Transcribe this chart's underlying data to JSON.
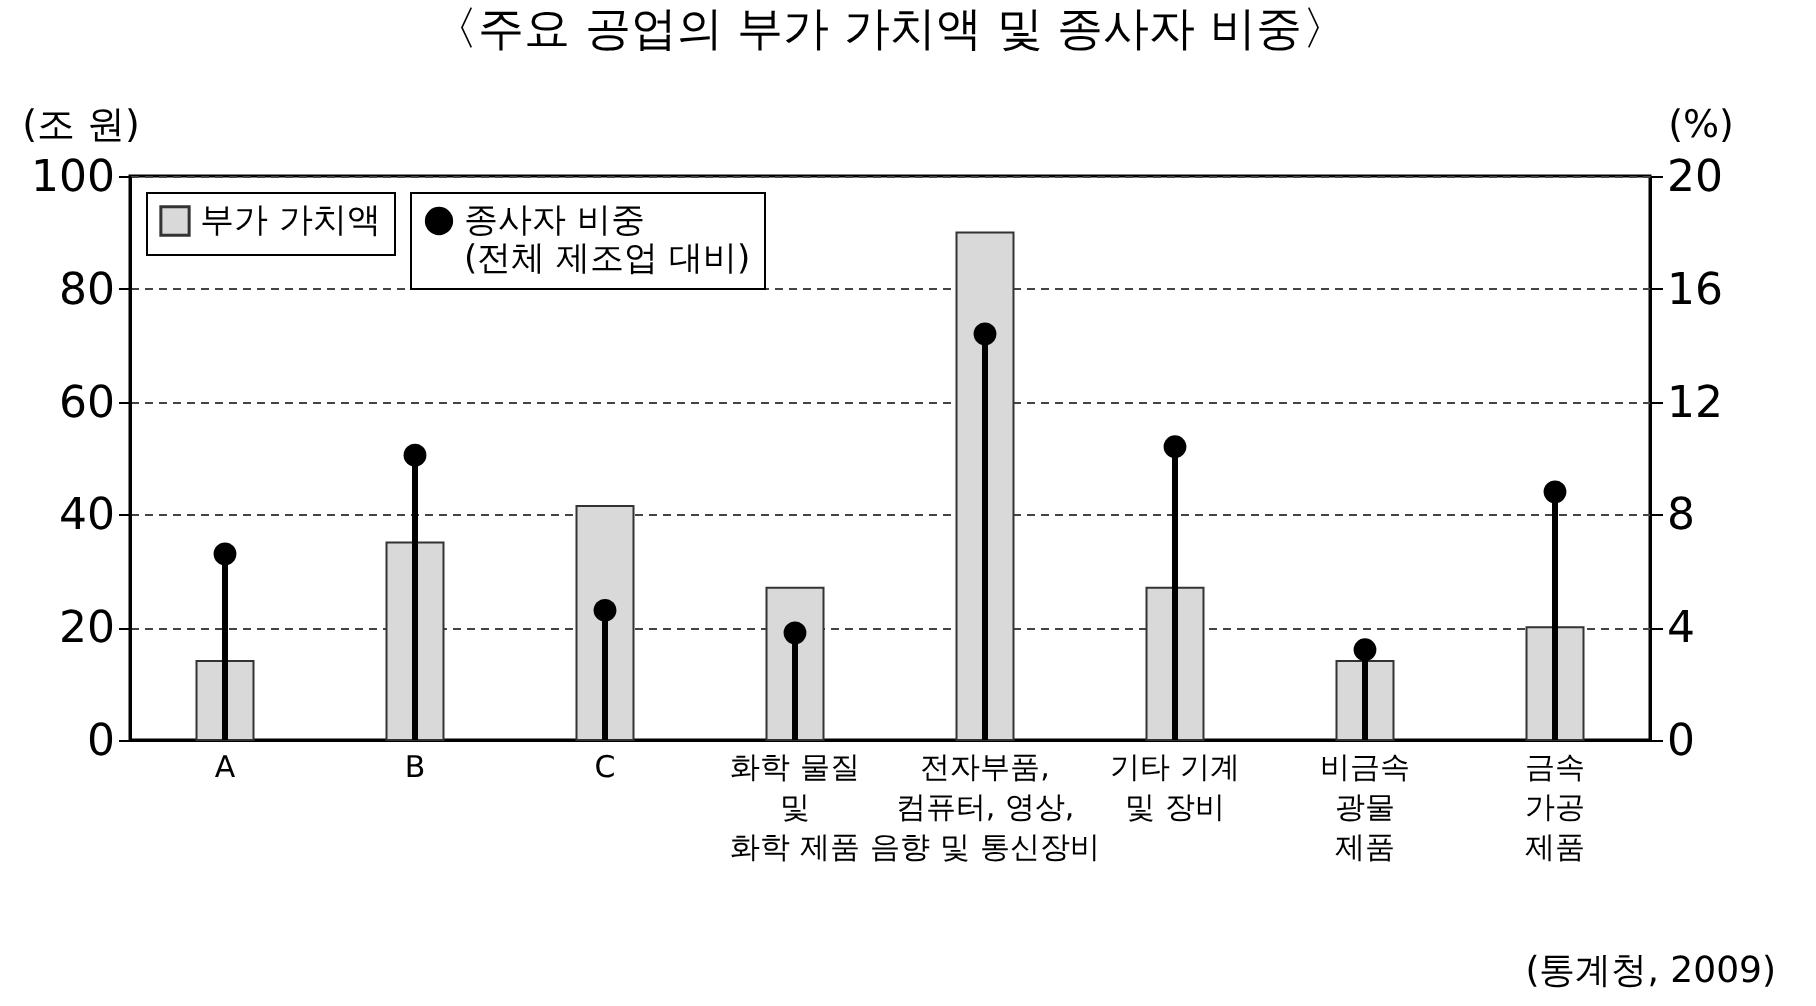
{
  "chart_data": {
    "type": "bar",
    "title": "〈주요 공업의 부가 가치액 및 종사자 비중〉",
    "ylabel": "(조 원)",
    "y2label": "(%)",
    "categories": [
      "A",
      "B",
      "C",
      "화학 물질\n및\n화학 제품",
      "전자부품,\n컴퓨터, 영상,\n음향 및 통신장비",
      "기타 기계\n및 장비",
      "비금속\n광물\n제품",
      "금속\n가공\n제품"
    ],
    "series": [
      {
        "name": "부가 가치액",
        "color": "#d9d9d9",
        "values": [
          14,
          35,
          41.5,
          27,
          90,
          27,
          14,
          20
        ]
      },
      {
        "name": "종사자 비중\n(전체 제조업 대비)",
        "type": "lollipop",
        "axis": "y2",
        "color": "#000000",
        "values": [
          6.6,
          10.1,
          4.6,
          3.8,
          14.4,
          10.4,
          3.2,
          8.8
        ]
      }
    ],
    "ylim": [
      0,
      100
    ],
    "yticks": [
      0,
      20,
      40,
      60,
      80,
      100
    ],
    "y2lim": [
      0,
      20
    ],
    "y2ticks": [
      0,
      4,
      8,
      12,
      16,
      20
    ],
    "grid": "y",
    "legend": "top left",
    "annotations": [
      "(통계청, 2009)"
    ]
  }
}
